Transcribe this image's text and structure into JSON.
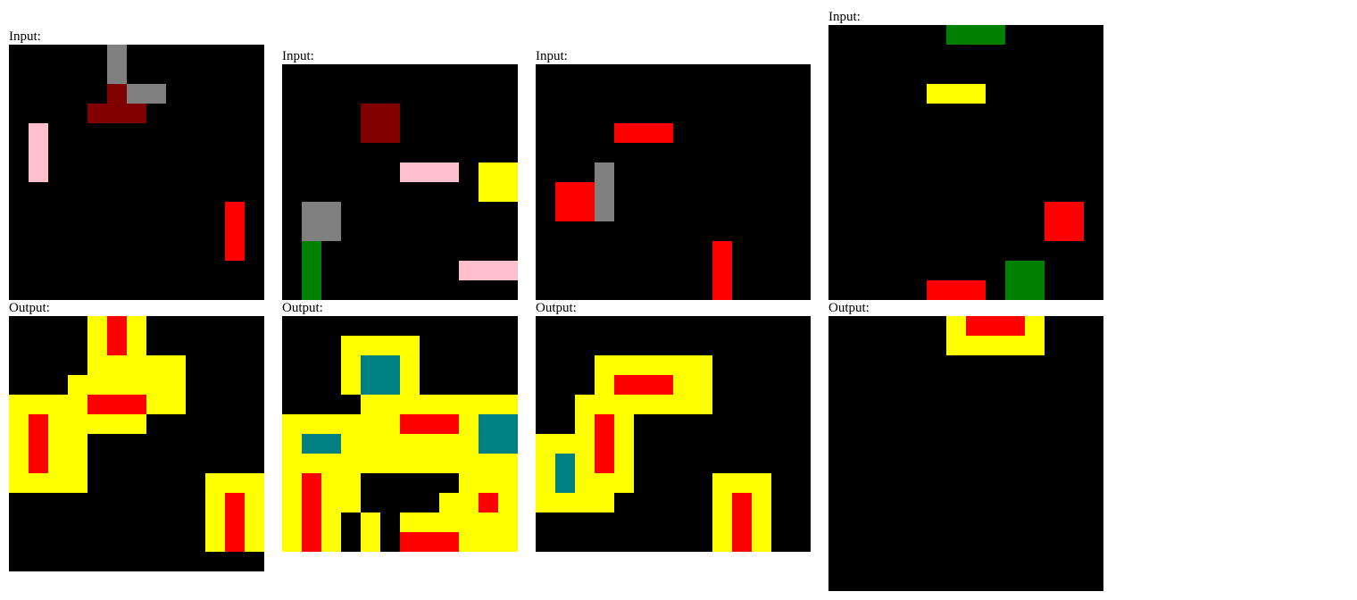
{
  "palette": {
    "0": "#000000",
    "1": "#ff0000",
    "2": "#800000",
    "3": "#808080",
    "4": "#ffc0cb",
    "5": "#ffff00",
    "6": "#008000",
    "7": "#008080"
  },
  "examples": [
    {
      "input_label": "Input:",
      "output_label": "Output:",
      "input": {
        "rows": 13,
        "cols": 13,
        "cells": [
          "0000030000000",
          "0000030000000",
          "0000023300000",
          "0000222000000",
          "0400000000000",
          "0400000000000",
          "0400000000000",
          "0000000000000",
          "0000000000010",
          "0000000000010",
          "0000000000010",
          "0000000000000",
          "0000000000000"
        ]
      },
      "output": {
        "rows": 13,
        "cols": 13,
        "cells": [
          "0000515000000",
          "0000515000000",
          "0000555550000",
          "0005555550000",
          "5555111550000",
          "5155555000000",
          "5155000000000",
          "5155000000000",
          "5555000000555",
          "0000000000515",
          "0000000000515",
          "0000000000515",
          "0000000000000"
        ]
      }
    },
    {
      "input_label": "Input:",
      "output_label": "Output:",
      "input": {
        "rows": 12,
        "cols": 12,
        "cells": [
          "000000000000",
          "000000000000",
          "000022000000",
          "000022000000",
          "000000000000",
          "000000444055",
          "000000000055",
          "033000000000",
          "033000000000",
          "060000000000",
          "060000000444",
          "060000000000"
        ]
      },
      "output": {
        "rows": 12,
        "cols": 12,
        "cells": [
          "000000000000",
          "000555500000",
          "000577500000",
          "000577500000",
          "000055555555",
          "555555111577",
          "577555555577",
          "555555555555",
          "515500000555",
          "515500005515",
          "515050555555",
          "515050111555"
        ]
      }
    },
    {
      "input_label": "Input:",
      "output_label": "Output:",
      "input": {
        "rows": 12,
        "cols": 14,
        "cells": [
          "00000000000000",
          "00000000000000",
          "00000000000000",
          "00001110000000",
          "00000000000000",
          "00030000000000",
          "01130000000000",
          "01130000000000",
          "00000000000000",
          "00000000010000",
          "00000000010000",
          "00000000010000"
        ]
      },
      "output": {
        "rows": 12,
        "cols": 14,
        "cells": [
          "00000000000000",
          "00000000000000",
          "00055555500000",
          "00051115500000",
          "00555555500000",
          "00515000000000",
          "55515000000000",
          "57515000000000",
          "57555000055500",
          "55550000051500",
          "00000000051500",
          "00000000051500"
        ]
      }
    },
    {
      "input_label": "Input:",
      "output_label": "Output:",
      "input": {
        "rows": 14,
        "cols": 14,
        "cells": [
          "00000066600000",
          "00000000000000",
          "00000000000000",
          "00000555000000",
          "00000000000000",
          "00000000000000",
          "00000000000000",
          "00000000000000",
          "00000000000000",
          "00000000000110",
          "00000000000110",
          "00000000000000",
          "00000000066000",
          "00000111066000"
        ]
      },
      "output": {
        "rows": 14,
        "cols": 14,
        "cells": [
          "00000051115000",
          "00000055555000",
          "00000000000000",
          "00000000000000",
          "00000000000000",
          "00000000000000",
          "00000000000000",
          "00000000000000",
          "00000000000000",
          "00000000000000",
          "00000000000000",
          "00000000000000",
          "00000000000000",
          "00000000000000"
        ]
      }
    }
  ]
}
